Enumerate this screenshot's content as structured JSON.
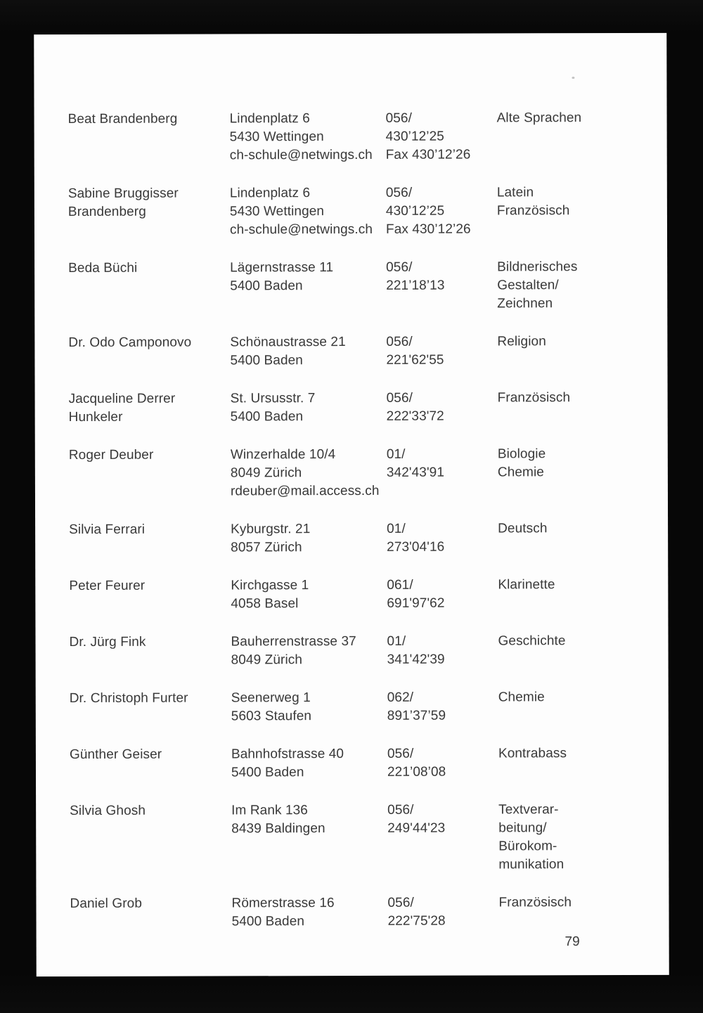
{
  "colors": {
    "background": "#0a0a0a",
    "paper": "#fdfdfd",
    "text": "#383838"
  },
  "page": {
    "number": "79"
  },
  "directory": {
    "entries": [
      {
        "name": [
          "Beat Brandenberg"
        ],
        "address": [
          "Lindenplatz 6",
          "5430 Wettingen",
          "ch-schule@netwings.ch"
        ],
        "phone": [
          "056/",
          "430’12’25",
          "Fax 430’12’26"
        ],
        "subjects": [
          "Alte Sprachen"
        ]
      },
      {
        "name": [
          "Sabine Bruggisser",
          "Brandenberg"
        ],
        "address": [
          "Lindenplatz 6",
          "5430 Wettingen",
          "ch-schule@netwings.ch"
        ],
        "phone": [
          "056/",
          "430’12’25",
          "Fax 430’12’26"
        ],
        "subjects": [
          "Latein",
          "Französisch"
        ]
      },
      {
        "name": [
          "Beda Büchi"
        ],
        "address": [
          "Lägernstrasse 11",
          "5400 Baden"
        ],
        "phone": [
          "056/",
          "221’18’13"
        ],
        "subjects": [
          "Bildnerisches",
          "Gestalten/",
          "Zeichnen"
        ]
      },
      {
        "name": [
          "Dr. Odo Camponovo"
        ],
        "address": [
          "Schönaustrasse 21",
          "5400 Baden"
        ],
        "phone": [
          "056/",
          "221'62'55"
        ],
        "subjects": [
          "Religion"
        ]
      },
      {
        "name": [
          "Jacqueline Derrer",
          "Hunkeler"
        ],
        "address": [
          "St. Ursusstr. 7",
          "5400 Baden"
        ],
        "phone": [
          "056/",
          "222'33'72"
        ],
        "subjects": [
          "Französisch"
        ]
      },
      {
        "name": [
          "Roger Deuber"
        ],
        "address": [
          "Winzerhalde 10/4",
          "8049 Zürich",
          "rdeuber@mail.access.ch"
        ],
        "phone": [
          "01/",
          "342'43'91"
        ],
        "subjects": [
          "Biologie",
          "Chemie"
        ]
      },
      {
        "name": [
          "Silvia Ferrari"
        ],
        "address": [
          "Kyburgstr. 21",
          "8057 Zürich"
        ],
        "phone": [
          "01/",
          "273'04'16"
        ],
        "subjects": [
          "Deutsch"
        ]
      },
      {
        "name": [
          "Peter Feurer"
        ],
        "address": [
          "Kirchgasse 1",
          "4058 Basel"
        ],
        "phone": [
          "061/",
          "691'97'62"
        ],
        "subjects": [
          "Klarinette"
        ]
      },
      {
        "name": [
          "Dr. Jürg Fink"
        ],
        "address": [
          "Bauherrenstrasse 37",
          "8049 Zürich"
        ],
        "phone": [
          "01/",
          "341'42'39"
        ],
        "subjects": [
          "Geschichte"
        ]
      },
      {
        "name": [
          "Dr. Christoph Furter"
        ],
        "address": [
          "Seenerweg 1",
          "5603 Staufen"
        ],
        "phone": [
          "062/",
          "891’37’59"
        ],
        "subjects": [
          "Chemie"
        ]
      },
      {
        "name": [
          "Günther Geiser"
        ],
        "address": [
          "Bahnhofstrasse 40",
          "5400 Baden"
        ],
        "phone": [
          "056/",
          "221’08’08"
        ],
        "subjects": [
          "Kontrabass"
        ]
      },
      {
        "name": [
          "Silvia Ghosh"
        ],
        "address": [
          "Im Rank 136",
          "8439 Baldingen"
        ],
        "phone": [
          "056/",
          "249'44'23"
        ],
        "subjects": [
          "Textverar-",
          "beitung/",
          "Bürokom-",
          "munikation"
        ]
      },
      {
        "name": [
          "Daniel Grob"
        ],
        "address": [
          "Römerstrasse 16",
          "5400 Baden"
        ],
        "phone": [
          "056/",
          "222'75'28"
        ],
        "subjects": [
          "Französisch"
        ]
      }
    ]
  }
}
